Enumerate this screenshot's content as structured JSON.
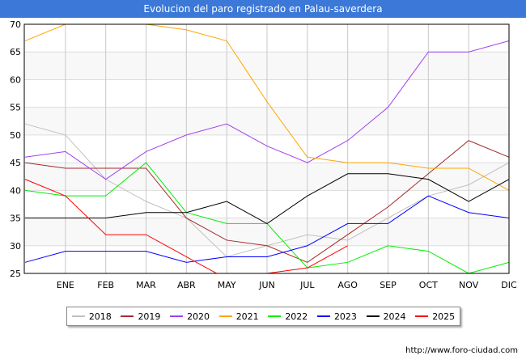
{
  "title": "Evolucion del paro registrado en Palau-saverdera",
  "footer_url": "http://www.foro-ciudad.com",
  "chart_data": {
    "type": "line",
    "title": "Evolucion del paro registrado en Palau-saverdera",
    "categories": [
      "",
      "ENE",
      "FEB",
      "MAR",
      "ABR",
      "MAY",
      "JUN",
      "JUL",
      "AGO",
      "SEP",
      "OCT",
      "NOV",
      "DIC"
    ],
    "ylim": [
      25,
      70
    ],
    "yticks": [
      25,
      30,
      35,
      40,
      45,
      50,
      55,
      60,
      65,
      70
    ],
    "grid": true,
    "legend_position": "bottom",
    "series": [
      {
        "name": "2018",
        "color": "#c0c0c0",
        "values": [
          52,
          50,
          42,
          38,
          35,
          28,
          30,
          32,
          31,
          35,
          39,
          41,
          45
        ]
      },
      {
        "name": "2019",
        "color": "#a52a2a",
        "values": [
          45,
          44,
          44,
          44,
          35,
          31,
          30,
          27,
          32,
          37,
          43,
          49,
          46
        ]
      },
      {
        "name": "2020",
        "color": "#a040f0",
        "values": [
          46,
          47,
          42,
          47,
          50,
          52,
          48,
          45,
          49,
          55,
          65,
          65,
          67
        ]
      },
      {
        "name": "2021",
        "color": "#ffa500",
        "values": [
          67,
          70,
          71,
          70,
          69,
          67,
          56,
          46,
          45,
          45,
          44,
          44,
          40
        ]
      },
      {
        "name": "2022",
        "color": "#00ee00",
        "values": [
          40,
          39,
          39,
          45,
          36,
          34,
          34,
          26,
          27,
          30,
          29,
          25,
          27
        ]
      },
      {
        "name": "2023",
        "color": "#0000ff",
        "values": [
          27,
          29,
          29,
          29,
          27,
          28,
          28,
          30,
          34,
          34,
          39,
          36,
          35
        ]
      },
      {
        "name": "2024",
        "color": "#000000",
        "values": [
          35,
          35,
          35,
          36,
          36,
          38,
          34,
          39,
          43,
          43,
          42,
          38,
          42
        ]
      },
      {
        "name": "2025",
        "color": "#ff0000",
        "values": [
          42,
          39,
          32,
          32,
          28,
          24,
          25,
          26,
          30,
          null,
          null,
          null,
          null
        ]
      }
    ]
  }
}
